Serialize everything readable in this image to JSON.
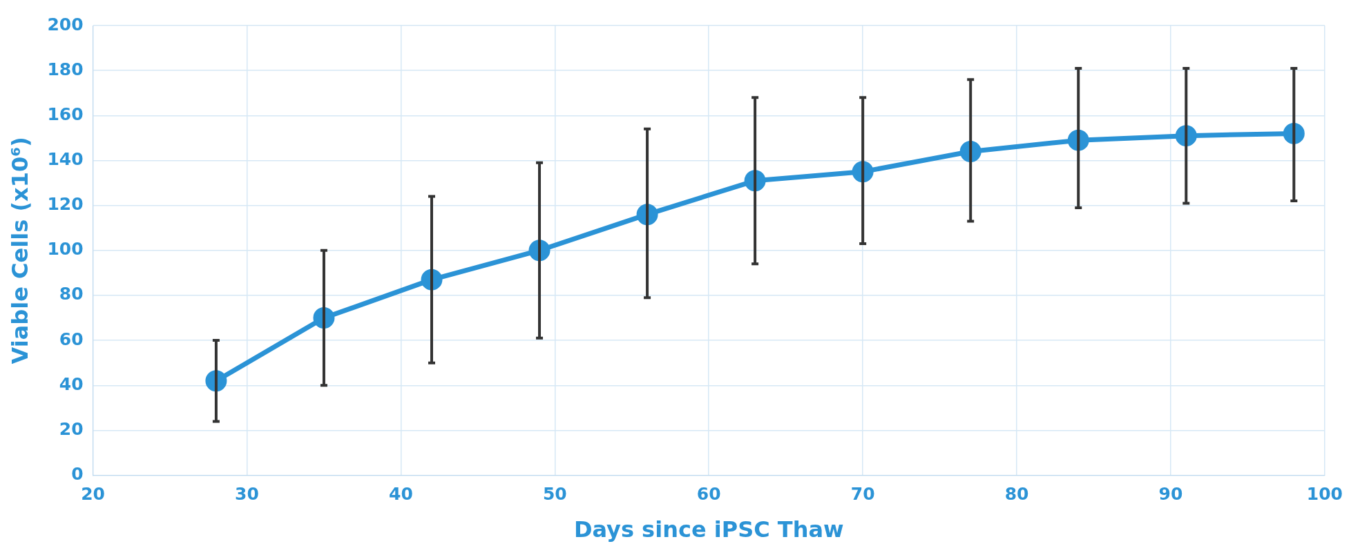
{
  "chart_data": {
    "type": "line",
    "xlabel": "Days since iPSC Thaw",
    "ylabel": "Viable Cells (x10⁶)",
    "x": [
      28,
      35,
      42,
      49,
      56,
      63,
      70,
      77,
      84,
      91,
      98
    ],
    "series": [
      {
        "color": "#2b93d6",
        "values": [
          42,
          70,
          87,
          100,
          116,
          131,
          135,
          144,
          149,
          151,
          152
        ],
        "errors": [
          [
            24,
            60
          ],
          [
            40,
            100
          ],
          [
            50,
            124
          ],
          [
            61,
            139
          ],
          [
            79,
            154
          ],
          [
            94,
            168
          ],
          [
            103,
            168
          ],
          [
            113,
            176
          ],
          [
            119,
            181
          ],
          [
            121,
            181
          ],
          [
            122,
            181
          ]
        ]
      }
    ],
    "xlim": [
      20,
      100
    ],
    "xticks": [
      20,
      30,
      40,
      50,
      60,
      70,
      80,
      90,
      100
    ],
    "ylim": [
      0,
      200
    ],
    "yticks": [
      0,
      20,
      40,
      60,
      80,
      100,
      120,
      140,
      160,
      180,
      200
    ],
    "grid": true,
    "legend": false,
    "marker": "circle",
    "line_style": "solid"
  }
}
